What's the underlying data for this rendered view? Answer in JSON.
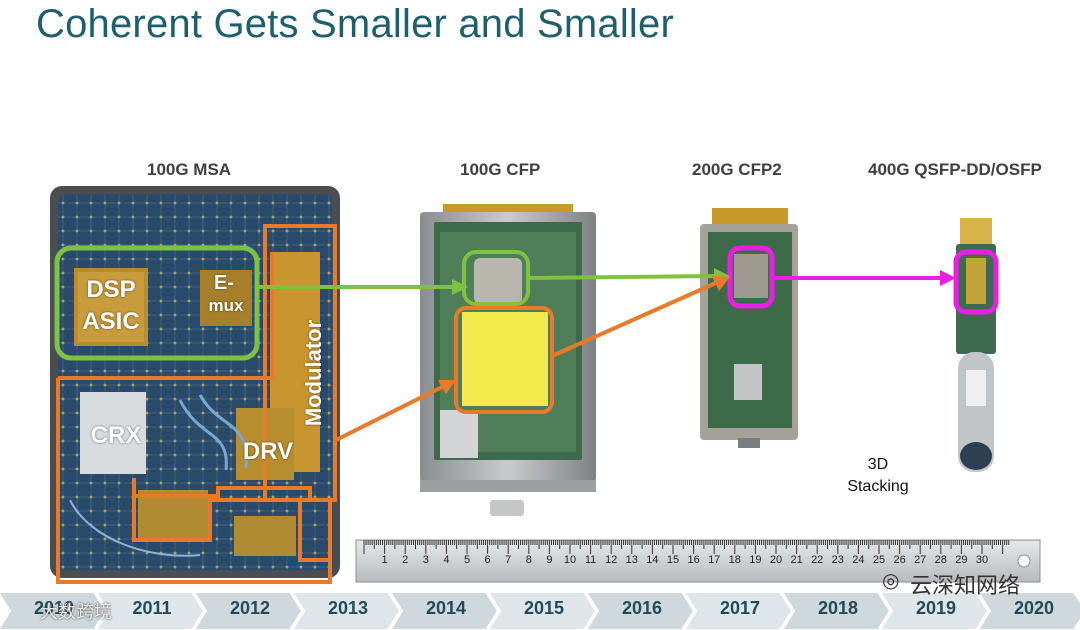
{
  "title": "Coherent Gets Smaller and Smaller",
  "modules": [
    {
      "label": "100G MSA"
    },
    {
      "label": "100G CFP"
    },
    {
      "label": "200G CFP2"
    },
    {
      "label": "400G QSFP-DD/OSFP"
    }
  ],
  "msa_blocks": {
    "dsp": "DSP",
    "asic": "ASIC",
    "emux_1": "E-",
    "emux_2": "mux",
    "modulator": "Modulator",
    "crx": "CRX",
    "drv": "DRV"
  },
  "annotation_line1": "3D",
  "annotation_line2": "Stacking",
  "ruler_numbers": [
    "1",
    "2",
    "3",
    "4",
    "5",
    "6",
    "7",
    "8",
    "9",
    "10",
    "11",
    "12",
    "13",
    "14",
    "15",
    "16",
    "17",
    "18",
    "19",
    "20",
    "21",
    "22",
    "23",
    "24",
    "25",
    "26",
    "27",
    "28",
    "29",
    "30"
  ],
  "timeline_years": [
    "2010",
    "2011",
    "2012",
    "2013",
    "2014",
    "2015",
    "2016",
    "2017",
    "2018",
    "2019",
    "2020"
  ],
  "watermark_brand": "云深知网络",
  "watermark_left": "大数跨境",
  "colors": {
    "title": "#1e5f6b",
    "green_box": "#7dc242",
    "orange_box": "#e87a2a",
    "magenta_box": "#e91fe4",
    "timeline": "#cfd8dc"
  }
}
